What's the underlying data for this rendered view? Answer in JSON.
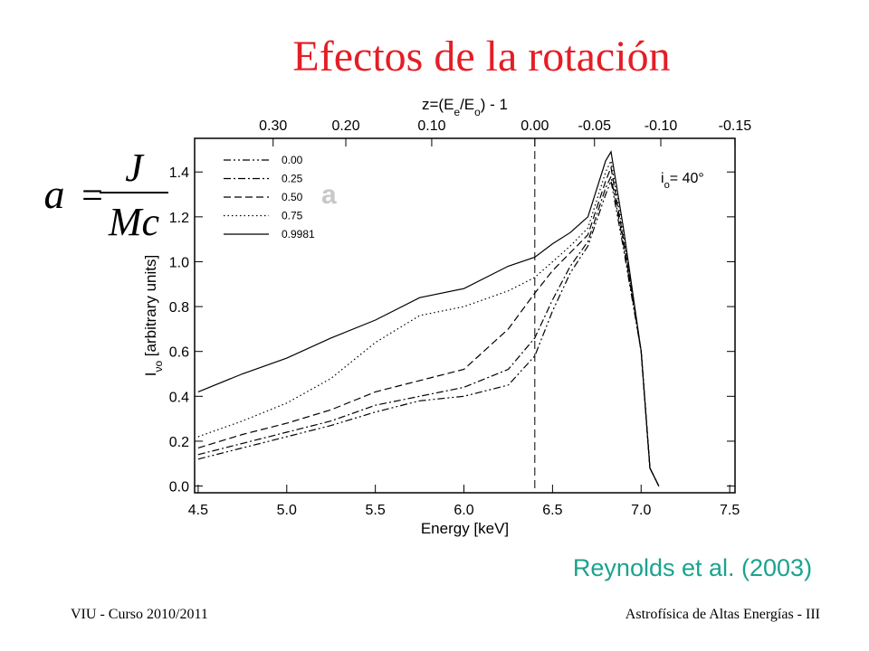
{
  "title": "Efectos de la rotación",
  "formula": {
    "lhs": "a",
    "eq": "=",
    "numerator": "J",
    "denominator": "Mc"
  },
  "citation": "Reynolds et al. (2003)",
  "footer": {
    "left": "VIU - Curso 2010/2011",
    "right": "Astrofísica de Altas Energías - III"
  },
  "chart_data": {
    "type": "line",
    "x_label": "Energy [keV]",
    "y_label": [
      {
        "text": "I"
      },
      {
        "sub": "νo"
      },
      {
        "text": " [arbitrary units]"
      }
    ],
    "x2_label": [
      {
        "text": "z=(E"
      },
      {
        "sub": "e"
      },
      {
        "text": "/E"
      },
      {
        "sub": "o"
      },
      {
        "text": ") - 1"
      }
    ],
    "annotations": [
      {
        "parts": [
          {
            "text": "a"
          }
        ],
        "color": "#c8c8c8"
      },
      {
        "parts": [
          {
            "text": "i"
          },
          {
            "sub": "o"
          },
          {
            "text": "= 40°"
          }
        ],
        "color": "#000000"
      }
    ],
    "reference_line": 6.4,
    "xlim": [
      4.48,
      7.53
    ],
    "ylim": [
      -0.03,
      1.55
    ],
    "xticks": [
      4.5,
      {
        "value": 5,
        "label": "5.0"
      },
      5.5,
      {
        "value": 6,
        "label": "6.0"
      },
      6.5,
      {
        "value": 7,
        "label": "7.0"
      },
      7.5
    ],
    "yticks": [
      {
        "value": 0,
        "label": "0.0"
      },
      0.2,
      0.4,
      0.6,
      0.8,
      {
        "value": 1,
        "label": "1.0"
      },
      1.2,
      1.4
    ],
    "x2ticks": [
      {
        "value": 0.3,
        "label": "0.30"
      },
      {
        "value": 0.2,
        "label": "0.20"
      },
      {
        "value": 0.1,
        "label": "0.10"
      },
      {
        "value": 0,
        "label": "0.00"
      },
      {
        "value": -0.05,
        "label": "-0.05"
      },
      {
        "value": -0.1,
        "label": "-0.10"
      },
      {
        "value": -0.15,
        "label": "-0.15"
      }
    ],
    "legend": "upper left",
    "x": [
      4.5,
      4.75,
      5.0,
      5.25,
      5.5,
      5.75,
      6.0,
      6.25,
      6.4,
      6.5,
      6.6,
      6.7,
      6.8,
      6.83,
      6.9,
      7.0,
      7.05,
      7.1
    ],
    "series": [
      {
        "name": "0.00",
        "color": "#000000",
        "style": "dash-dot-dot",
        "values": [
          0.12,
          0.17,
          0.22,
          0.27,
          0.33,
          0.38,
          0.4,
          0.45,
          0.58,
          0.78,
          0.95,
          1.07,
          1.3,
          1.36,
          1.06,
          0.6,
          0.08,
          0.0
        ]
      },
      {
        "name": "0.25",
        "color": "#000000",
        "style": "dash-dot",
        "values": [
          0.14,
          0.19,
          0.24,
          0.29,
          0.36,
          0.4,
          0.44,
          0.52,
          0.66,
          0.83,
          0.98,
          1.09,
          1.33,
          1.38,
          1.08,
          0.6,
          0.08,
          0.0
        ]
      },
      {
        "name": "0.50",
        "color": "#000000",
        "style": "dashed",
        "values": [
          0.17,
          0.23,
          0.28,
          0.34,
          0.42,
          0.47,
          0.52,
          0.7,
          0.86,
          0.96,
          1.04,
          1.12,
          1.36,
          1.42,
          1.1,
          0.6,
          0.08,
          0.0
        ]
      },
      {
        "name": "0.75",
        "color": "#000000",
        "style": "dotted",
        "values": [
          0.22,
          0.29,
          0.37,
          0.48,
          0.64,
          0.76,
          0.8,
          0.87,
          0.93,
          1.0,
          1.07,
          1.15,
          1.4,
          1.45,
          1.12,
          0.6,
          0.08,
          0.0
        ]
      },
      {
        "name": "0.9981",
        "color": "#000000",
        "style": "solid",
        "values": [
          0.42,
          0.5,
          0.57,
          0.66,
          0.74,
          0.84,
          0.88,
          0.98,
          1.02,
          1.08,
          1.13,
          1.2,
          1.45,
          1.49,
          1.15,
          0.6,
          0.08,
          0.0
        ]
      }
    ]
  }
}
